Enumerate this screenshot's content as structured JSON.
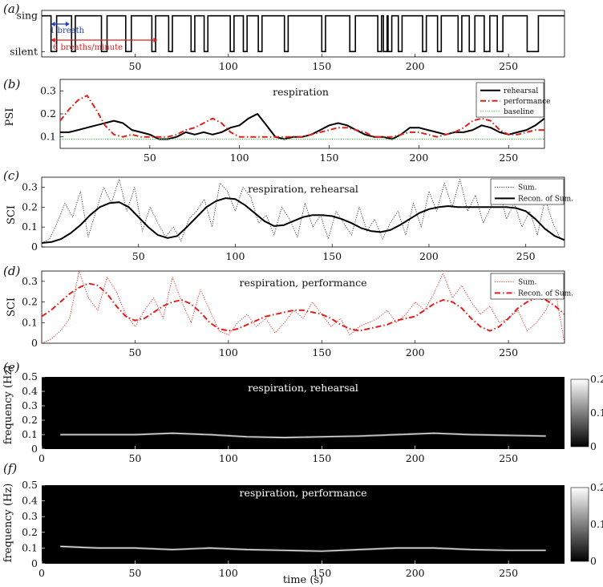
{
  "chart_data": [
    {
      "id": "a",
      "panel_label": "(a)",
      "type": "line",
      "step": true,
      "xlim": [
        0,
        280
      ],
      "x_ticks": [
        50,
        100,
        150,
        200,
        250
      ],
      "y_ticks": [
        {
          "value": 0,
          "label": "silent"
        },
        {
          "value": 1,
          "label": "sing"
        }
      ],
      "ylim": [
        -0.15,
        1.15
      ],
      "series": [
        {
          "color": "#000000",
          "silent_intervals": [
            [
              5,
              8
            ],
            [
              16,
              18
            ],
            [
              32,
              35
            ],
            [
              45,
              48
            ],
            [
              59,
              61
            ],
            [
              68,
              70
            ],
            [
              80,
              82
            ],
            [
              87,
              89
            ],
            [
              101,
              103
            ],
            [
              108,
              110
            ],
            [
              116,
              118
            ],
            [
              130,
              132
            ],
            [
              150,
              152
            ],
            [
              165,
              168
            ],
            [
              180,
              182
            ],
            [
              183,
              185
            ],
            [
              185.5,
              187.5
            ],
            [
              191,
              193
            ],
            [
              204,
              206
            ],
            [
              212,
              214
            ],
            [
              223,
              225
            ],
            [
              229,
              232
            ],
            [
              237,
              240
            ],
            [
              244,
              247
            ],
            [
              260,
              266
            ]
          ]
        }
      ],
      "annotations": [
        {
          "text": "1 breath",
          "color": "#1f3fbf",
          "x_start": 5,
          "x_end": 15
        },
        {
          "text": "6 breaths/minute",
          "color": "#e0201c",
          "x_start": 5,
          "x_end": 62
        }
      ]
    },
    {
      "id": "b",
      "panel_label": "(b)",
      "type": "line",
      "title": "respiration",
      "ylabel": "PSI",
      "xlim": [
        0,
        270
      ],
      "ylim": [
        0.05,
        0.35
      ],
      "x_ticks": [
        50,
        100,
        150,
        200,
        250
      ],
      "y_ticks": [
        0.1,
        0.2,
        0.3
      ],
      "legend_position": "top-right",
      "series": [
        {
          "name": "rehearsal",
          "color": "#000000",
          "dash": "solid",
          "x": [
            0,
            5,
            10,
            15,
            20,
            25,
            30,
            35,
            40,
            45,
            50,
            55,
            60,
            65,
            70,
            75,
            80,
            85,
            90,
            95,
            100,
            105,
            110,
            115,
            120,
            125,
            130,
            135,
            140,
            145,
            150,
            155,
            160,
            165,
            170,
            175,
            180,
            185,
            190,
            195,
            200,
            205,
            210,
            215,
            220,
            225,
            230,
            235,
            240,
            245,
            250,
            255,
            260,
            265,
            270
          ],
          "y": [
            0.12,
            0.12,
            0.13,
            0.14,
            0.15,
            0.16,
            0.17,
            0.16,
            0.13,
            0.12,
            0.11,
            0.09,
            0.09,
            0.1,
            0.12,
            0.11,
            0.12,
            0.11,
            0.12,
            0.14,
            0.15,
            0.18,
            0.2,
            0.15,
            0.1,
            0.09,
            0.1,
            0.1,
            0.11,
            0.13,
            0.15,
            0.16,
            0.15,
            0.13,
            0.11,
            0.1,
            0.1,
            0.09,
            0.11,
            0.14,
            0.14,
            0.13,
            0.12,
            0.11,
            0.12,
            0.12,
            0.13,
            0.15,
            0.14,
            0.12,
            0.11,
            0.12,
            0.13,
            0.15,
            0.18
          ]
        },
        {
          "name": "performance",
          "color": "#e0201c",
          "dash": "dashdot",
          "x": [
            0,
            5,
            10,
            15,
            20,
            25,
            30,
            35,
            40,
            45,
            50,
            55,
            60,
            65,
            70,
            75,
            80,
            85,
            90,
            95,
            100,
            105,
            110,
            115,
            120,
            125,
            130,
            135,
            140,
            145,
            150,
            155,
            160,
            165,
            170,
            175,
            180,
            185,
            190,
            195,
            200,
            205,
            210,
            215,
            220,
            225,
            230,
            235,
            240,
            245,
            250,
            255,
            260,
            265,
            270
          ],
          "y": [
            0.17,
            0.22,
            0.26,
            0.28,
            0.22,
            0.15,
            0.11,
            0.1,
            0.11,
            0.1,
            0.1,
            0.1,
            0.1,
            0.11,
            0.13,
            0.14,
            0.16,
            0.18,
            0.16,
            0.12,
            0.1,
            0.1,
            0.1,
            0.1,
            0.1,
            0.1,
            0.1,
            0.1,
            0.11,
            0.12,
            0.13,
            0.14,
            0.14,
            0.13,
            0.12,
            0.1,
            0.1,
            0.1,
            0.11,
            0.12,
            0.12,
            0.11,
            0.1,
            0.11,
            0.12,
            0.14,
            0.17,
            0.18,
            0.17,
            0.13,
            0.11,
            0.11,
            0.12,
            0.13,
            0.13
          ]
        },
        {
          "name": "baseline",
          "color": "#3cc43c",
          "dash": "dotted",
          "x": [
            0,
            270
          ],
          "y": [
            0.09,
            0.09
          ]
        }
      ]
    },
    {
      "id": "c",
      "panel_label": "(c)",
      "type": "line",
      "title": "respiration, rehearsal",
      "ylabel": "SCI",
      "xlim": [
        0,
        270
      ],
      "ylim": [
        0,
        0.35
      ],
      "x_ticks": [
        50,
        100,
        150,
        200,
        250
      ],
      "y_ticks": [
        0,
        0.1,
        0.2,
        0.3
      ],
      "legend_position": "top-right",
      "series": [
        {
          "name": "Sum.",
          "color": "#333333",
          "dash": "dotted",
          "x": [
            0,
            4,
            8,
            12,
            16,
            20,
            24,
            28,
            32,
            36,
            40,
            44,
            48,
            52,
            56,
            60,
            64,
            68,
            72,
            76,
            80,
            84,
            88,
            92,
            96,
            100,
            104,
            108,
            112,
            116,
            120,
            124,
            128,
            132,
            136,
            140,
            144,
            148,
            152,
            156,
            160,
            164,
            168,
            172,
            176,
            180,
            184,
            188,
            192,
            196,
            200,
            204,
            208,
            212,
            216,
            220,
            224,
            228,
            232,
            236,
            240,
            244,
            248,
            252,
            256,
            260,
            264,
            268
          ],
          "y": [
            0.02,
            0.04,
            0.12,
            0.22,
            0.15,
            0.28,
            0.05,
            0.18,
            0.3,
            0.22,
            0.34,
            0.18,
            0.3,
            0.08,
            0.2,
            0.12,
            0.05,
            0.1,
            0.03,
            0.14,
            0.18,
            0.24,
            0.1,
            0.32,
            0.28,
            0.18,
            0.3,
            0.25,
            0.12,
            0.16,
            0.06,
            0.2,
            0.14,
            0.05,
            0.22,
            0.1,
            0.16,
            0.04,
            0.18,
            0.12,
            0.06,
            0.2,
            0.08,
            0.14,
            0.04,
            0.12,
            0.18,
            0.06,
            0.22,
            0.1,
            0.28,
            0.18,
            0.32,
            0.2,
            0.34,
            0.18,
            0.26,
            0.12,
            0.2,
            0.3,
            0.14,
            0.22,
            0.1,
            0.18,
            0.06,
            0.24,
            0.12,
            0.04
          ]
        },
        {
          "name": "Recon. of Sum.",
          "color": "#000000",
          "dash": "solid",
          "x": [
            0,
            5,
            10,
            15,
            20,
            25,
            30,
            35,
            40,
            45,
            50,
            55,
            60,
            65,
            70,
            75,
            80,
            85,
            90,
            95,
            100,
            105,
            110,
            115,
            120,
            125,
            130,
            135,
            140,
            145,
            150,
            155,
            160,
            165,
            170,
            175,
            180,
            185,
            190,
            195,
            200,
            205,
            210,
            215,
            220,
            225,
            230,
            235,
            240,
            245,
            250,
            255,
            260,
            265,
            270
          ],
          "y": [
            0.02,
            0.025,
            0.04,
            0.07,
            0.11,
            0.16,
            0.2,
            0.22,
            0.225,
            0.2,
            0.15,
            0.1,
            0.06,
            0.045,
            0.055,
            0.1,
            0.15,
            0.2,
            0.23,
            0.245,
            0.24,
            0.21,
            0.17,
            0.13,
            0.105,
            0.11,
            0.13,
            0.15,
            0.16,
            0.16,
            0.155,
            0.14,
            0.12,
            0.095,
            0.08,
            0.075,
            0.085,
            0.11,
            0.14,
            0.17,
            0.19,
            0.2,
            0.205,
            0.2,
            0.2,
            0.2,
            0.2,
            0.2,
            0.2,
            0.195,
            0.18,
            0.14,
            0.09,
            0.055,
            0.035
          ]
        }
      ]
    },
    {
      "id": "d",
      "panel_label": "(d)",
      "type": "line",
      "title": "respiration, performance",
      "ylabel": "SCI",
      "xlim": [
        0,
        280
      ],
      "ylim": [
        0,
        0.35
      ],
      "x_ticks": [
        50,
        100,
        150,
        200,
        250
      ],
      "y_ticks": [
        0,
        0.1,
        0.2,
        0.3
      ],
      "legend_position": "top-right",
      "series": [
        {
          "name": "Sum.",
          "color": "#e0201c",
          "dash": "dotted",
          "x": [
            0,
            5,
            10,
            15,
            20,
            25,
            30,
            35,
            40,
            45,
            50,
            55,
            60,
            65,
            70,
            75,
            80,
            85,
            90,
            95,
            100,
            105,
            110,
            115,
            120,
            125,
            130,
            135,
            140,
            145,
            150,
            155,
            160,
            165,
            170,
            175,
            180,
            185,
            190,
            195,
            200,
            205,
            210,
            215,
            220,
            225,
            230,
            235,
            240,
            245,
            250,
            255,
            260,
            265,
            270,
            275,
            280
          ],
          "y": [
            0.0,
            0.02,
            0.06,
            0.12,
            0.35,
            0.22,
            0.16,
            0.32,
            0.25,
            0.14,
            0.08,
            0.16,
            0.22,
            0.12,
            0.32,
            0.2,
            0.1,
            0.26,
            0.16,
            0.06,
            0.04,
            0.1,
            0.14,
            0.08,
            0.12,
            0.05,
            0.1,
            0.16,
            0.12,
            0.2,
            0.14,
            0.08,
            0.12,
            0.04,
            0.08,
            0.1,
            0.12,
            0.16,
            0.1,
            0.14,
            0.2,
            0.16,
            0.24,
            0.34,
            0.22,
            0.28,
            0.2,
            0.14,
            0.18,
            0.1,
            0.12,
            0.16,
            0.06,
            0.1,
            0.16,
            0.26,
            0.0
          ]
        },
        {
          "name": "Recon. of Sum.",
          "color": "#e0201c",
          "dash": "dashdot",
          "x": [
            0,
            5,
            10,
            15,
            20,
            25,
            30,
            35,
            40,
            45,
            50,
            55,
            60,
            65,
            70,
            75,
            80,
            85,
            90,
            95,
            100,
            105,
            110,
            115,
            120,
            125,
            130,
            135,
            140,
            145,
            150,
            155,
            160,
            165,
            170,
            175,
            180,
            185,
            190,
            195,
            200,
            205,
            210,
            215,
            220,
            225,
            230,
            235,
            240,
            245,
            250,
            255,
            260,
            265,
            270,
            275,
            280
          ],
          "y": [
            0.13,
            0.16,
            0.2,
            0.24,
            0.27,
            0.29,
            0.28,
            0.24,
            0.18,
            0.13,
            0.11,
            0.12,
            0.15,
            0.18,
            0.2,
            0.21,
            0.19,
            0.15,
            0.1,
            0.07,
            0.06,
            0.07,
            0.09,
            0.11,
            0.13,
            0.14,
            0.15,
            0.16,
            0.16,
            0.15,
            0.14,
            0.12,
            0.09,
            0.07,
            0.06,
            0.07,
            0.08,
            0.09,
            0.11,
            0.12,
            0.13,
            0.16,
            0.19,
            0.21,
            0.2,
            0.17,
            0.12,
            0.08,
            0.06,
            0.08,
            0.12,
            0.17,
            0.2,
            0.22,
            0.21,
            0.18,
            0.14
          ]
        }
      ]
    },
    {
      "id": "e",
      "panel_label": "(e)",
      "type": "heatmap",
      "title": "respiration, rehearsal",
      "ylabel": "frequency (Hz)",
      "xlim": [
        0,
        280
      ],
      "ylim": [
        0,
        0.5
      ],
      "x_ticks": [
        0,
        50,
        100,
        150,
        200,
        250
      ],
      "y_ticks": [
        0,
        0.1,
        0.2,
        0.3,
        0.4,
        0.5
      ],
      "colorbar": {
        "min": 0,
        "max": 0.2,
        "ticks": [
          0,
          0.1,
          0.2
        ],
        "colormap": "gray"
      },
      "ridge": {
        "x": [
          10,
          30,
          50,
          70,
          90,
          110,
          130,
          150,
          170,
          190,
          210,
          230,
          250,
          270
        ],
        "y": [
          0.1,
          0.1,
          0.1,
          0.11,
          0.1,
          0.085,
          0.08,
          0.085,
          0.09,
          0.1,
          0.11,
          0.1,
          0.095,
          0.09
        ]
      }
    },
    {
      "id": "f",
      "panel_label": "(f)",
      "type": "heatmap",
      "title": "respiration, performance",
      "ylabel": "frequency (Hz)",
      "xlabel": "time (s)",
      "xlim": [
        0,
        280
      ],
      "ylim": [
        0,
        0.5
      ],
      "x_ticks": [
        0,
        50,
        100,
        150,
        200,
        250
      ],
      "y_ticks": [
        0,
        0.1,
        0.2,
        0.3,
        0.4,
        0.5
      ],
      "colorbar": {
        "min": 0,
        "max": 0.2,
        "ticks": [
          0,
          0.1,
          0.2
        ],
        "colormap": "gray"
      },
      "ridge": {
        "x": [
          10,
          30,
          50,
          70,
          90,
          110,
          130,
          150,
          170,
          190,
          210,
          230,
          250,
          270
        ],
        "y": [
          0.11,
          0.1,
          0.1,
          0.09,
          0.1,
          0.09,
          0.085,
          0.08,
          0.09,
          0.1,
          0.1,
          0.09,
          0.085,
          0.085
        ]
      }
    }
  ]
}
